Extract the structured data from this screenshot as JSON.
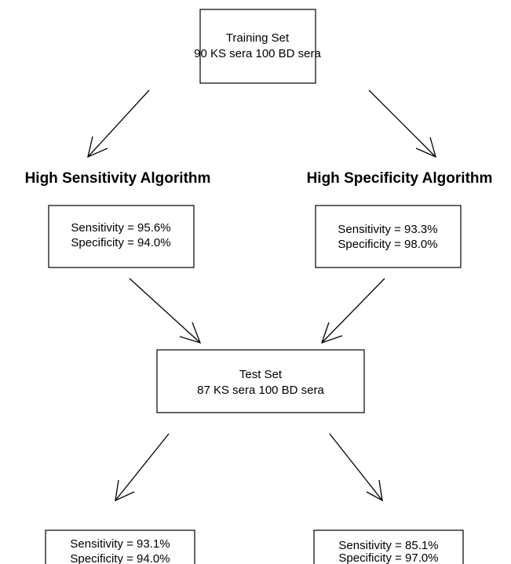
{
  "nodes": [
    {
      "lines": [
        "Training Set",
        "90 KS sera  100 BD sera"
      ]
    },
    {
      "lines": [
        "Sensitivity = 95.6%",
        "Specificity = 94.0%"
      ]
    },
    {
      "lines": [
        "Sensitivity = 93.3%",
        "Specificity = 98.0%"
      ]
    },
    {
      "lines": [
        "Test Set",
        "87 KS sera  100 BD sera"
      ]
    },
    {
      "lines": [
        "Sensitivity = 93.1%",
        "Specificity = 94.0%"
      ]
    },
    {
      "lines": [
        "Sensitivity = 85.1%",
        "Specificity = 97.0%"
      ]
    }
  ],
  "headings": [
    "High Sensitivity Algorithm",
    "High Specificity Algorithm"
  ]
}
